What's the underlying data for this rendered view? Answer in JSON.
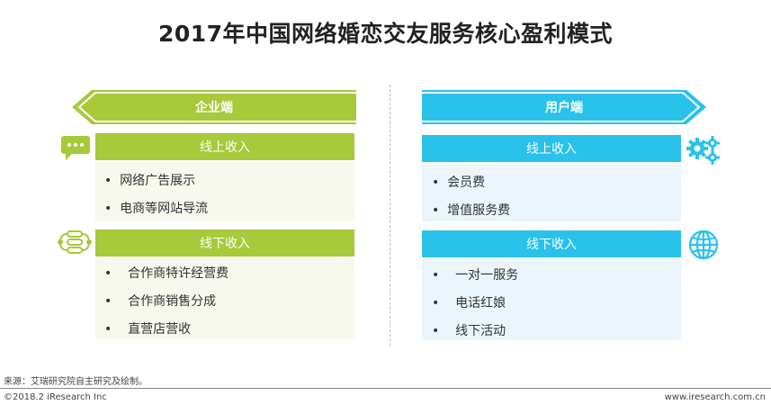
{
  "title": "2017年中国网络婚恋交友服务核心盈利模式",
  "left": {
    "header": "企业端",
    "online": {
      "label": "线上收入",
      "items": [
        "网络广告展示",
        "电商等网站导流"
      ]
    },
    "offline": {
      "label": "线下收入",
      "items": [
        "合作商特许经营费",
        "合作商销售分成",
        "直营店营收"
      ]
    }
  },
  "right": {
    "header": "用户端",
    "online": {
      "label": "线上收入",
      "items": [
        "会员费",
        "增值服务费"
      ]
    },
    "offline": {
      "label": "线下收入",
      "items": [
        "一对一服务",
        "电话红娘",
        "线下活动"
      ]
    }
  },
  "bullet": "•",
  "footer": {
    "source": "来源：艾瑞研究院自主研究及绘制。",
    "copyright": "©2018.2 iResearch Inc",
    "website": "www.iresearch.com.cn"
  },
  "colors": {
    "green": "#a7c93a",
    "blue": "#29c2ea",
    "green_bg": "#f7f8ee",
    "blue_bg": "#eaf6fb"
  },
  "icons": [
    "chat-bubble-icon",
    "flow-chain-icon",
    "gears-icon",
    "globe-icon"
  ]
}
